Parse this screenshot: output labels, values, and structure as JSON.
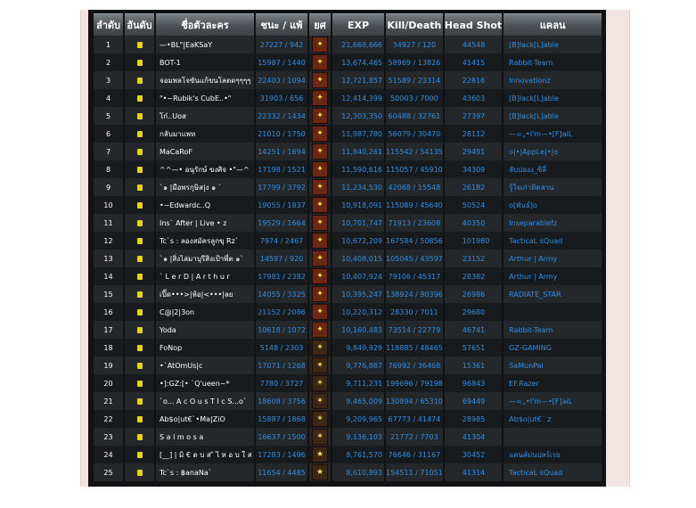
{
  "headers": {
    "rank": "ลำดับ",
    "level": "อันดับ",
    "name": "ชื่อตัวละคร",
    "winloss": "ชนะ / แพ้",
    "rankicon": "ยศ",
    "exp": "EXP",
    "killdeath": "Kill/Death",
    "headshot": "Head Shot",
    "clan": "แคลน"
  },
  "colors": {
    "link": "#2c8fe6",
    "level_badge": "#e8d21c",
    "row_odd": "#24282b",
    "row_even": "#181b1d"
  },
  "rows": [
    {
      "rank": "1",
      "name": "—•BL\"|EaKSaY",
      "wl": "27227 / 942",
      "exp": "21,668,666",
      "kd": "34927 / 120",
      "hs": "44548",
      "clan": "[B]lack[L]able",
      "icon": "gold-rank-icon"
    },
    {
      "rank": "2",
      "name": "BOT-1",
      "wl": "15987 / 1440",
      "exp": "13,674,465",
      "kd": "58969 / 13826",
      "hs": "41415",
      "clan": "Rabbit-Team",
      "icon": "gold-rank-icon"
    },
    {
      "rank": "3",
      "name": "จอมพลโจซันแก้ขนโลดดๆๆๆๆ",
      "wl": "22403 / 1094",
      "exp": "12,721,857",
      "kd": "51589 / 23314",
      "hs": "22816",
      "clan": "Innovationz",
      "icon": "gold-rank-icon"
    },
    {
      "rank": "4",
      "name": "\"•~Rubik's CubE..•\"",
      "wl": "31903 / 656",
      "exp": "12,414,399",
      "kd": "50003 / 7000",
      "hs": "43603",
      "clan": "[B]lack[L]able",
      "icon": "gold-rank-icon"
    },
    {
      "rank": "5",
      "name": "โก๋..Uoส",
      "wl": "22332 / 1434",
      "exp": "12,303,350",
      "kd": "60488 / 32761",
      "hs": "27397",
      "clan": "[B]lack[L]able",
      "icon": "gold-rank-icon"
    },
    {
      "rank": "6",
      "name": "กลับมาแพห",
      "wl": "21010 / 1750",
      "exp": "11,987,780",
      "kd": "56079 / 30470",
      "hs": "28112",
      "clan": "—=„•I'm—•[F]aiL",
      "icon": "gold-rank-icon"
    },
    {
      "rank": "7",
      "name": "MaCaRoF",
      "wl": "14251 / 1694",
      "exp": "11,840,261",
      "kd": "115542 / 54135",
      "hs": "29491",
      "clan": "o|•|AppLe|•|o",
      "icon": "gold-rank-icon"
    },
    {
      "rank": "8",
      "name": "^^—• อนุรักษ์ ขงศิจ •\"—^",
      "wl": "17198 / 1521",
      "exp": "11,590,616",
      "kd": "115057 / 45910",
      "hs": "34309",
      "clan": "ลับปองง_ซิลี่",
      "icon": "gold-rank-icon"
    },
    {
      "rank": "9",
      "name": "`๑ |มือพรกุษิส|ง ๑ `",
      "wl": "17799 / 3792",
      "exp": "11,234,530",
      "kd": "42068 / 15548",
      "hs": "26182",
      "clan": "รู้ใจเก่าทิดลาน",
      "icon": "gold-rank-icon"
    },
    {
      "rank": "10",
      "name": "•~Edwardc..Q",
      "wl": "19055 / 1837",
      "exp": "10,918,091",
      "kd": "115089 / 45640",
      "hs": "50524",
      "clan": "o[พันธ์]o",
      "icon": "gold-rank-icon"
    },
    {
      "rank": "11",
      "name": "Ins` After | Live • z",
      "wl": "19529 / 1664",
      "exp": "10,701,747",
      "kd": "71913 / 23608",
      "hs": "40350",
      "clan": "Inseparablefz",
      "icon": "gold-rank-icon"
    },
    {
      "rank": "12",
      "name": "Tc`s : ลองสมัครลูกขุ Rz`",
      "wl": "7974 / 2467",
      "exp": "10,672,209",
      "kd": "167584 / 50856",
      "hs": "101980",
      "clan": "TacticaL sQuad",
      "icon": "gold-rank-icon"
    },
    {
      "rank": "13",
      "name": "`๑ |สิ่งไล่มาบุรีสิงเป้าพี่ต ๑`",
      "wl": "14597 / 920",
      "exp": "10,408,015",
      "kd": "105045 / 43597",
      "hs": "23152",
      "clan": "Arthur | Army",
      "icon": "gold-rank-icon"
    },
    {
      "rank": "14",
      "name": "` L e r D | A r t h u r",
      "wl": "17981 / 2382",
      "exp": "10,407,924",
      "kd": "79106 / 45317",
      "hs": "28382",
      "clan": "Arthur | Army",
      "icon": "gold-rank-icon"
    },
    {
      "rank": "15",
      "name": "เปิ๊ด•••>|ห้อ|<•••|ลย",
      "wl": "14055 / 3325",
      "exp": "10,395,247",
      "kd": "138924 / 90396",
      "hs": "26986",
      "clan": "RADIATE_STAR",
      "icon": "gold-rank-icon"
    },
    {
      "rank": "16",
      "name": "C@|2|3on",
      "wl": "21152 / 2086",
      "exp": "10,220,312",
      "kd": "28330 / 7011",
      "hs": "29680",
      "clan": "",
      "icon": "gold-rank-icon"
    },
    {
      "rank": "17",
      "name": "Yoda",
      "wl": "10618 / 1072",
      "exp": "10,160,483",
      "kd": "73514 / 22779",
      "hs": "46741",
      "clan": "Rabbit-Team",
      "icon": "gold-rank-icon"
    },
    {
      "rank": "18",
      "name": "FoNop",
      "wl": "5148 / 2303",
      "exp": "9,849,929",
      "kd": "118885 / 48465",
      "hs": "57651",
      "clan": "GZ-GAMING",
      "icon": "silver-rank-icon"
    },
    {
      "rank": "19",
      "name": "•`AtOmUs|c",
      "wl": "17071 / 1268",
      "exp": "9,776,887",
      "kd": "76992 / 36468",
      "hs": "15361",
      "clan": "SaMunPai",
      "icon": "silver-rank-icon"
    },
    {
      "rank": "20",
      "name": "•]:GZ:[• `Q'ueen~*",
      "wl": "7780 / 3727",
      "exp": "9,711,231",
      "kd": "199696 / 79198",
      "hs": "96843",
      "clan": "EF.Razer",
      "icon": "silver-rank-icon"
    },
    {
      "rank": "21",
      "name": "`o... A c O u s T I c S...o`",
      "wl": "18608 / 3756",
      "exp": "9,465,009",
      "kd": "130894 / 65310",
      "hs": "69449",
      "clan": "—=„•I'm—•[F]aiL",
      "icon": "silver-rank-icon"
    },
    {
      "rank": "22",
      "name": "Ab$o|ut€`•Ma|ZiO",
      "wl": "15887 / 1868",
      "exp": "9,209,965",
      "kd": "67773 / 41474",
      "hs": "28985",
      "clan": "Ab$o|ut€` z",
      "icon": "silver-rank-icon"
    },
    {
      "rank": "23",
      "name": "S a l m o s a",
      "wl": "16637 / 1500",
      "exp": "9,136,103",
      "kd": "21772 / 7703",
      "hs": "41304",
      "clan": "",
      "icon": "silver-rank-icon"
    },
    {
      "rank": "24",
      "name": "[__] | มิ € ด บ ส ั ไ ห อ บ ใ ส",
      "wl": "17283 / 1496",
      "exp": "8,761,570",
      "kd": "76646 / 31167",
      "hs": "30452",
      "clan": "แดนส์ม่นปลร์เรย",
      "icon": "star-rank-icon"
    },
    {
      "rank": "25",
      "name": "Tc`s : ฿anaNa`",
      "wl": "11654 / 4485",
      "exp": "8,610,893",
      "kd": "154511 / 71051",
      "hs": "41314",
      "clan": "TacticaL sQuad",
      "icon": "star-rank-icon"
    }
  ]
}
